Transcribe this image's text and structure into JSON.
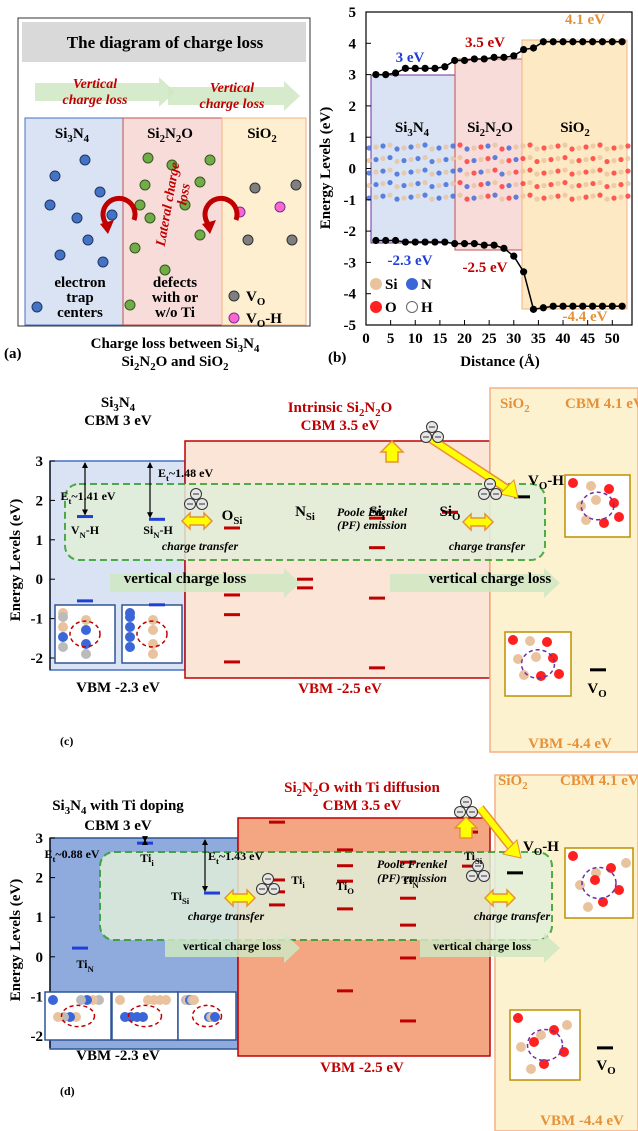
{
  "panel_a": {
    "label": "(a)",
    "title": "The diagram of charge loss",
    "vertical_loss": [
      "Vertical",
      "charge loss"
    ],
    "columns": [
      [
        "Si",
        "3",
        "N",
        "4"
      ],
      [
        "Si",
        "2",
        "N",
        "2",
        "O"
      ],
      [
        "SiO",
        "2"
      ]
    ],
    "lateral_loss": [
      "Lateral charge",
      "loss"
    ],
    "trap": [
      "electron",
      "trap",
      "centers"
    ],
    "defects": [
      "defects",
      "with or",
      "w/o Ti"
    ],
    "vo": [
      "V",
      "O"
    ],
    "voh": [
      "V",
      "O",
      "-H"
    ],
    "caption": [
      [
        "Charge loss between Si",
        "3",
        "N",
        "4"
      ],
      [
        "Si",
        "2",
        "N",
        "2",
        "O and SiO",
        "2"
      ]
    ]
  },
  "panel_b": {
    "type": "line",
    "label": "(b)",
    "ylabel": "Energy Levels (eV)",
    "xlabel": "Distance (Å)",
    "xlim": [
      0,
      54
    ],
    "ylim": [
      -5,
      5
    ],
    "xticks": [
      0,
      5,
      10,
      15,
      20,
      25,
      30,
      35,
      40,
      45,
      50
    ],
    "yticks": [
      -5,
      -4,
      -3,
      -2,
      -1,
      0,
      1,
      2,
      3,
      4,
      5
    ],
    "x": [
      2,
      4,
      6,
      8,
      10,
      12,
      14,
      16,
      18,
      20,
      22,
      24,
      26,
      28,
      30,
      32,
      34,
      36,
      38,
      40,
      42,
      44,
      46,
      48,
      50,
      52
    ],
    "series": [
      {
        "color": "#000000",
        "values": [
          3.0,
          3.0,
          3.05,
          3.2,
          3.2,
          3.2,
          3.2,
          3.25,
          3.45,
          3.45,
          3.5,
          3.5,
          3.55,
          3.55,
          3.6,
          3.8,
          3.85,
          4.05,
          4.05,
          4.05,
          4.05,
          4.05,
          4.05,
          4.05,
          4.05,
          4.05
        ]
      },
      {
        "color": "#000000",
        "values": [
          -2.3,
          -2.3,
          -2.3,
          -2.35,
          -2.35,
          -2.35,
          -2.35,
          -2.35,
          -2.4,
          -2.4,
          -2.4,
          -2.45,
          -2.45,
          -2.55,
          -2.8,
          -3.3,
          -4.5,
          -4.45,
          -4.4,
          -4.4,
          -4.4,
          -4.4,
          -4.4,
          -4.4,
          -4.4,
          -4.4
        ]
      }
    ],
    "regions": [
      [
        "Si",
        "3",
        "N",
        "4"
      ],
      [
        "Si",
        "2",
        "N",
        "2",
        "O"
      ],
      [
        "SiO",
        "2"
      ]
    ],
    "band_labels": [
      "3 eV",
      "3.5 eV",
      "4.1 eV",
      "-2.3 eV",
      "-2.5 eV",
      "-4.4 eV"
    ],
    "atoms": [
      "Si",
      "N",
      "O",
      "H"
    ]
  },
  "panel_c": {
    "label": "(c)",
    "ylabel": "Energy Levels (eV)",
    "ylim": [
      -2.3,
      3
    ],
    "yticks": [
      -2,
      -1,
      0,
      1,
      2,
      3
    ],
    "si3n4": {
      "title": [
        "Si",
        "3",
        "N",
        "4"
      ],
      "cbm": "CBM 3 eV",
      "vbm": "VBM -2.3 eV"
    },
    "si2n2o": {
      "title": [
        "Intrinsic Si",
        "2",
        "N",
        "2",
        "O"
      ],
      "cbm": "CBM 3.5 eV",
      "vbm": "VBM -2.5 eV"
    },
    "sio2": {
      "title": [
        "SiO",
        "2"
      ],
      "cbm": "CBM 4.1 eV",
      "vbm": "VBM -4.4 eV"
    },
    "pf": [
      "Poole Frenkel",
      "(PF) emission"
    ],
    "et": [
      [
        "E",
        "t",
        "~1.41 eV"
      ],
      [
        "E",
        "t",
        "~1.48 eV"
      ]
    ],
    "defects": [
      [
        "V",
        "N",
        "-H"
      ],
      [
        "Si",
        "N",
        "-H"
      ],
      [
        "O",
        "Si"
      ],
      [
        "N",
        "Si"
      ],
      [
        "Si",
        "i"
      ],
      [
        "Si",
        "O"
      ],
      [
        "V",
        "O",
        "-H"
      ],
      [
        "V",
        "O"
      ]
    ],
    "charge_transfer": "charge transfer",
    "vertical_loss": "vertical charge loss",
    "levels": [
      {
        "color": "#1f3fd6",
        "values": [
          1.59,
          1.52,
          -0.55,
          -0.65
        ]
      },
      {
        "color": "#c00000",
        "values": [
          1.3,
          -0.4,
          -0.9,
          -2.1,
          0.0,
          -0.22,
          1.55,
          0.8,
          -0.48,
          -2.25,
          1.7
        ]
      },
      {
        "color": "#000000",
        "values": [
          2.09,
          -2.3
        ]
      }
    ]
  },
  "panel_d": {
    "label": "(d)",
    "ylabel": "Energy Levels (eV)",
    "ylim": [
      -2.3,
      3
    ],
    "yticks": [
      -2,
      -1,
      0,
      1,
      2,
      3
    ],
    "si3n4": {
      "title": [
        "Si",
        "3",
        "N",
        "4",
        " with Ti doping"
      ],
      "cbm": "CBM 3 eV",
      "vbm": "VBM -2.3 eV"
    },
    "si2n2o": {
      "title": [
        "Si",
        "2",
        "N",
        "2",
        "O with Ti diffusion"
      ],
      "cbm": "CBM 3.5 eV",
      "vbm": "VBM -2.5 eV"
    },
    "sio2": {
      "title": [
        "SiO",
        "2"
      ],
      "cbm": "CBM 4.1 eV",
      "vbm": "VBM -4.4 eV"
    },
    "pf": [
      "Poole Frenkel",
      "(PF) emission"
    ],
    "et": [
      [
        "E",
        "t",
        "~0.88 eV"
      ],
      [
        "E",
        "t",
        "~1.43 eV"
      ]
    ],
    "defects": [
      [
        "Ti",
        "i"
      ],
      [
        "Ti",
        "Si"
      ],
      [
        "Ti",
        "N"
      ],
      [
        "Ti",
        "i"
      ],
      [
        "Ti",
        "O"
      ],
      [
        "Ti",
        "N"
      ],
      [
        "Ti",
        "Si"
      ],
      [
        "V",
        "O",
        "-H"
      ],
      [
        "V",
        "O"
      ]
    ],
    "charge_transfer": "charge transfer",
    "vertical_loss": "vertical charge loss",
    "levels": [
      {
        "color": "#1f3fd6",
        "values": [
          2.87,
          1.61,
          0.22
        ]
      },
      {
        "color": "#c00000",
        "values": [
          3.4,
          1.94,
          1.64,
          1.31,
          2.7,
          2.3,
          1.91,
          1.21,
          -0.86,
          2.39,
          1.48,
          0.8,
          -0.03,
          -1.62,
          3.15,
          2.29
        ]
      },
      {
        "color": "#000000",
        "values": [
          2.12,
          -2.3
        ]
      }
    ]
  }
}
